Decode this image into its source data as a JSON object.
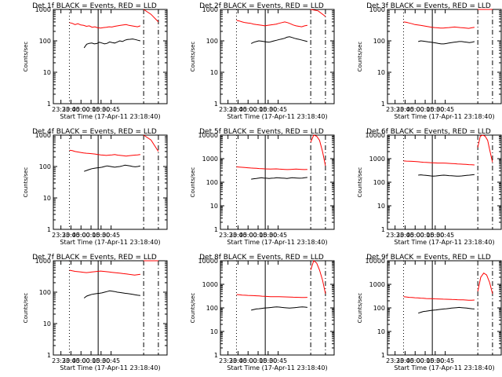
{
  "figure": {
    "xlabel": "Start Time (17-Apr-11 23:18:40)",
    "ylabel": "Counts/sec",
    "colors": {
      "events": "#000000",
      "lld": "#ff0000",
      "axes": "#000000",
      "background": "#ffffff"
    }
  },
  "chart_data": [
    {
      "type": "line",
      "title": "Det 1f BLACK = Events, RED = LLD",
      "ylog": true,
      "ylim": [
        1,
        1000
      ],
      "yticks": [
        1,
        10,
        100,
        1000
      ],
      "x_tick_labels": [
        "23:30",
        "23:45",
        "00:00",
        "00:15",
        "00:30",
        "00:45"
      ],
      "markers": {
        "E": 24,
        "F": 67,
        "B1": 135,
        "B2": 157
      },
      "series": [
        {
          "name": "Events",
          "start": 46,
          "end": 130,
          "after_start": 135,
          "after_end": 157,
          "values": [
            60,
            78,
            83,
            85,
            80,
            82,
            90,
            85,
            80,
            83,
            92,
            88,
            85,
            92,
            100,
            95,
            105,
            110,
            112,
            115,
            110,
            105,
            100
          ],
          "after_values": []
        },
        {
          "name": "LLD",
          "start": 24,
          "end": 130,
          "after_start": 135,
          "after_end": 157,
          "values": [
            380,
            360,
            330,
            350,
            320,
            310,
            290,
            300,
            270,
            280,
            260,
            255,
            265,
            270,
            280,
            275,
            290,
            300,
            310,
            320,
            330,
            310,
            300,
            290,
            280,
            300
          ],
          "after_values": [
            1000,
            700,
            400
          ]
        }
      ]
    },
    {
      "type": "line",
      "title": "Det 2f BLACK = Events, RED = LLD",
      "ylog": true,
      "ylim": [
        1,
        1000
      ],
      "yticks": [
        1,
        10,
        100,
        1000
      ],
      "x_tick_labels": [
        "23:30",
        "23:45",
        "00:00",
        "00:15",
        "00:30",
        "00:45"
      ],
      "markers": {
        "E": 24,
        "F": 67,
        "B1": 135,
        "B2": 157
      },
      "series": [
        {
          "name": "Events",
          "start": 46,
          "end": 130,
          "after_start": 135,
          "after_end": 157,
          "values": [
            82,
            90,
            95,
            100,
            98,
            95,
            92,
            90,
            95,
            100,
            105,
            110,
            115,
            120,
            130,
            135,
            128,
            120,
            115,
            110,
            105,
            100,
            95
          ],
          "after_values": []
        },
        {
          "name": "LLD",
          "start": 24,
          "end": 130,
          "after_start": 135,
          "after_end": 157,
          "values": [
            450,
            430,
            400,
            380,
            370,
            360,
            340,
            330,
            320,
            310,
            300,
            310,
            320,
            330,
            340,
            360,
            380,
            400,
            380,
            350,
            320,
            300,
            290,
            280,
            300,
            310
          ],
          "after_values": [
            1000,
            900,
            600
          ]
        }
      ]
    },
    {
      "type": "line",
      "title": "Det 3f BLACK = Events, RED = LLD",
      "ylog": true,
      "ylim": [
        1,
        1000
      ],
      "yticks": [
        1,
        10,
        100,
        1000
      ],
      "x_tick_labels": [
        "23:30",
        "23:45",
        "00:00",
        "00:15",
        "00:30",
        "00:45"
      ],
      "markers": {
        "E": 24,
        "F": 67,
        "B1": 135,
        "B2": 157
      },
      "series": [
        {
          "name": "Events",
          "start": 46,
          "end": 130,
          "after_start": 135,
          "after_end": 157,
          "values": [
            95,
            100,
            98,
            95,
            92,
            90,
            88,
            85,
            82,
            80,
            80,
            82,
            85,
            88,
            90,
            92,
            95,
            95,
            92,
            90,
            88,
            90,
            95
          ],
          "after_values": []
        },
        {
          "name": "LLD",
          "start": 24,
          "end": 130,
          "after_start": 135,
          "after_end": 157,
          "values": [
            400,
            390,
            370,
            350,
            330,
            320,
            310,
            300,
            290,
            280,
            270,
            265,
            260,
            255,
            255,
            260,
            265,
            270,
            275,
            270,
            265,
            260,
            255,
            250,
            260,
            270
          ],
          "after_values": [
            1000,
            1000,
            1000
          ]
        }
      ]
    },
    {
      "type": "line",
      "title": "Det 4f BLACK = Events, RED = LLD",
      "ylog": true,
      "ylim": [
        1,
        1000
      ],
      "yticks": [
        1,
        10,
        100,
        1000
      ],
      "x_tick_labels": [
        "23:30",
        "23:45",
        "00:00",
        "00:15",
        "00:30",
        "00:45"
      ],
      "markers": {
        "E": 24,
        "F": 67,
        "B1": 135,
        "B2": 157
      },
      "series": [
        {
          "name": "Events",
          "start": 46,
          "end": 130,
          "after_start": 135,
          "after_end": 157,
          "values": [
            70,
            75,
            80,
            85,
            88,
            90,
            92,
            95,
            100,
            105,
            102,
            98,
            95,
            98,
            100,
            105,
            110,
            108,
            104,
            100,
            98,
            100,
            104
          ],
          "after_values": []
        },
        {
          "name": "LLD",
          "start": 24,
          "end": 130,
          "after_start": 135,
          "after_end": 157,
          "values": [
            330,
            320,
            300,
            290,
            280,
            270,
            265,
            260,
            255,
            250,
            240,
            235,
            230,
            225,
            230,
            235,
            240,
            230,
            225,
            220,
            215,
            220,
            225,
            230,
            235,
            240
          ],
          "after_values": [
            1000,
            700,
            300
          ]
        }
      ]
    },
    {
      "type": "line",
      "title": "Det 5f BLACK = Events, RED = LLD",
      "ylog": true,
      "ylim": [
        1,
        10000
      ],
      "yticks": [
        1,
        10,
        100,
        1000,
        10000
      ],
      "x_tick_labels": [
        "23:30",
        "23:45",
        "00:00",
        "00:15",
        "00:30",
        "00:45"
      ],
      "markers": {
        "E": 24,
        "F": 67,
        "B1": 135,
        "B2": 157
      },
      "series": [
        {
          "name": "Events",
          "start": 46,
          "end": 130,
          "after_start": 135,
          "after_end": 157,
          "values": [
            135,
            140,
            145,
            150,
            155,
            150,
            148,
            145,
            148,
            150,
            155,
            152,
            150,
            148,
            145,
            150,
            155,
            152,
            150,
            148,
            150,
            155,
            160
          ],
          "after_values": []
        },
        {
          "name": "LLD",
          "start": 24,
          "end": 130,
          "after_start": 135,
          "after_end": 157,
          "values": [
            450,
            440,
            430,
            420,
            410,
            400,
            395,
            390,
            380,
            375,
            370,
            365,
            360,
            365,
            370,
            360,
            355,
            350,
            345,
            350,
            355,
            360,
            355,
            350,
            345,
            350
          ],
          "after_values": [
            5000,
            10000,
            9000,
            6000,
            2000,
            500
          ]
        }
      ]
    },
    {
      "type": "line",
      "title": "Det 6f BLACK = Events, RED = LLD",
      "ylog": true,
      "ylim": [
        1,
        10000
      ],
      "yticks": [
        1,
        10,
        100,
        1000,
        10000
      ],
      "x_tick_labels": [
        "23:30",
        "23:45",
        "00:00",
        "00:15",
        "00:30",
        "00:45"
      ],
      "markers": {
        "E": 24,
        "F": 67,
        "B1": 135,
        "B2": 157
      },
      "series": [
        {
          "name": "Events",
          "start": 46,
          "end": 130,
          "after_start": 135,
          "after_end": 157,
          "values": [
            200,
            205,
            200,
            195,
            190,
            185,
            180,
            185,
            190,
            195,
            200,
            195,
            190,
            188,
            185,
            182,
            180,
            185,
            190,
            195,
            200,
            205,
            210
          ],
          "after_values": []
        },
        {
          "name": "LLD",
          "start": 24,
          "end": 130,
          "after_start": 135,
          "after_end": 157,
          "values": [
            800,
            790,
            780,
            770,
            760,
            740,
            720,
            700,
            690,
            680,
            670,
            660,
            650,
            650,
            650,
            640,
            630,
            620,
            610,
            600,
            590,
            580,
            570,
            560,
            550,
            540
          ],
          "after_values": [
            3000,
            9000,
            10000,
            9000,
            6000,
            2000,
            700
          ]
        }
      ]
    },
    {
      "type": "line",
      "title": "Det 7f BLACK = Events, RED = LLD",
      "ylog": true,
      "ylim": [
        1,
        1000
      ],
      "yticks": [
        1,
        10,
        100,
        1000
      ],
      "x_tick_labels": [
        "23:30",
        "23:45",
        "00:00",
        "00:15",
        "00:30",
        "00:45"
      ],
      "markers": {
        "E": 24,
        "F": 67,
        "B1": 135,
        "B2": 157
      },
      "series": [
        {
          "name": "Events",
          "start": 46,
          "end": 130,
          "after_start": 135,
          "after_end": 157,
          "values": [
            65,
            75,
            80,
            85,
            88,
            90,
            92,
            95,
            100,
            105,
            110,
            108,
            105,
            100,
            98,
            95,
            92,
            90,
            88,
            85,
            82,
            80,
            78
          ],
          "after_values": []
        },
        {
          "name": "LLD",
          "start": 24,
          "end": 130,
          "after_start": 135,
          "after_end": 157,
          "values": [
            500,
            480,
            460,
            450,
            440,
            430,
            420,
            430,
            440,
            450,
            460,
            470,
            460,
            450,
            440,
            430,
            420,
            410,
            400,
            390,
            380,
            370,
            360,
            350,
            360,
            370
          ],
          "after_values": [
            1000,
            1000,
            1000
          ]
        }
      ]
    },
    {
      "type": "line",
      "title": "Det 8f BLACK = Events, RED = LLD",
      "ylog": true,
      "ylim": [
        1,
        10000
      ],
      "yticks": [
        1,
        10,
        100,
        1000,
        10000
      ],
      "x_tick_labels": [
        "23:30",
        "23:45",
        "00:00",
        "00:15",
        "00:30",
        "00:45"
      ],
      "markers": {
        "E": 24,
        "F": 67,
        "B1": 135,
        "B2": 157
      },
      "series": [
        {
          "name": "Events",
          "start": 46,
          "end": 130,
          "after_start": 135,
          "after_end": 157,
          "values": [
            80,
            85,
            90,
            92,
            95,
            98,
            100,
            102,
            105,
            108,
            110,
            108,
            105,
            102,
            100,
            98,
            100,
            102,
            105,
            108,
            110,
            108,
            105
          ],
          "after_values": []
        },
        {
          "name": "LLD",
          "start": 24,
          "end": 130,
          "after_start": 135,
          "after_end": 157,
          "values": [
            370,
            360,
            350,
            345,
            340,
            335,
            330,
            325,
            320,
            315,
            310,
            305,
            300,
            300,
            300,
            298,
            295,
            292,
            290,
            288,
            285,
            282,
            280,
            278,
            275,
            280
          ],
          "after_values": [
            4000,
            10000,
            8000,
            4000,
            1500,
            400
          ]
        }
      ]
    },
    {
      "type": "line",
      "title": "Det 9f BLACK = Events, RED = LLD",
      "ylog": true,
      "ylim": [
        1,
        10000
      ],
      "yticks": [
        1,
        10,
        100,
        1000,
        10000
      ],
      "x_tick_labels": [
        "23:30",
        "23:45",
        "00:00",
        "00:15",
        "00:30",
        "00:45"
      ],
      "markers": {
        "E": 24,
        "F": 67,
        "B1": 135,
        "B2": 157
      },
      "series": [
        {
          "name": "Events",
          "start": 46,
          "end": 130,
          "after_start": 135,
          "after_end": 157,
          "values": [
            60,
            65,
            70,
            72,
            75,
            78,
            80,
            82,
            85,
            88,
            90,
            92,
            95,
            98,
            100,
            102,
            105,
            102,
            100,
            98,
            95,
            92,
            90
          ],
          "after_values": []
        },
        {
          "name": "LLD",
          "start": 24,
          "end": 130,
          "after_start": 135,
          "after_end": 157,
          "values": [
            300,
            290,
            280,
            275,
            270,
            265,
            260,
            255,
            250,
            248,
            245,
            242,
            240,
            238,
            235,
            232,
            230,
            228,
            225,
            222,
            220,
            218,
            215,
            212,
            210,
            215
          ],
          "after_values": [
            500,
            2000,
            3000,
            2500,
            1200,
            400
          ]
        }
      ]
    }
  ]
}
